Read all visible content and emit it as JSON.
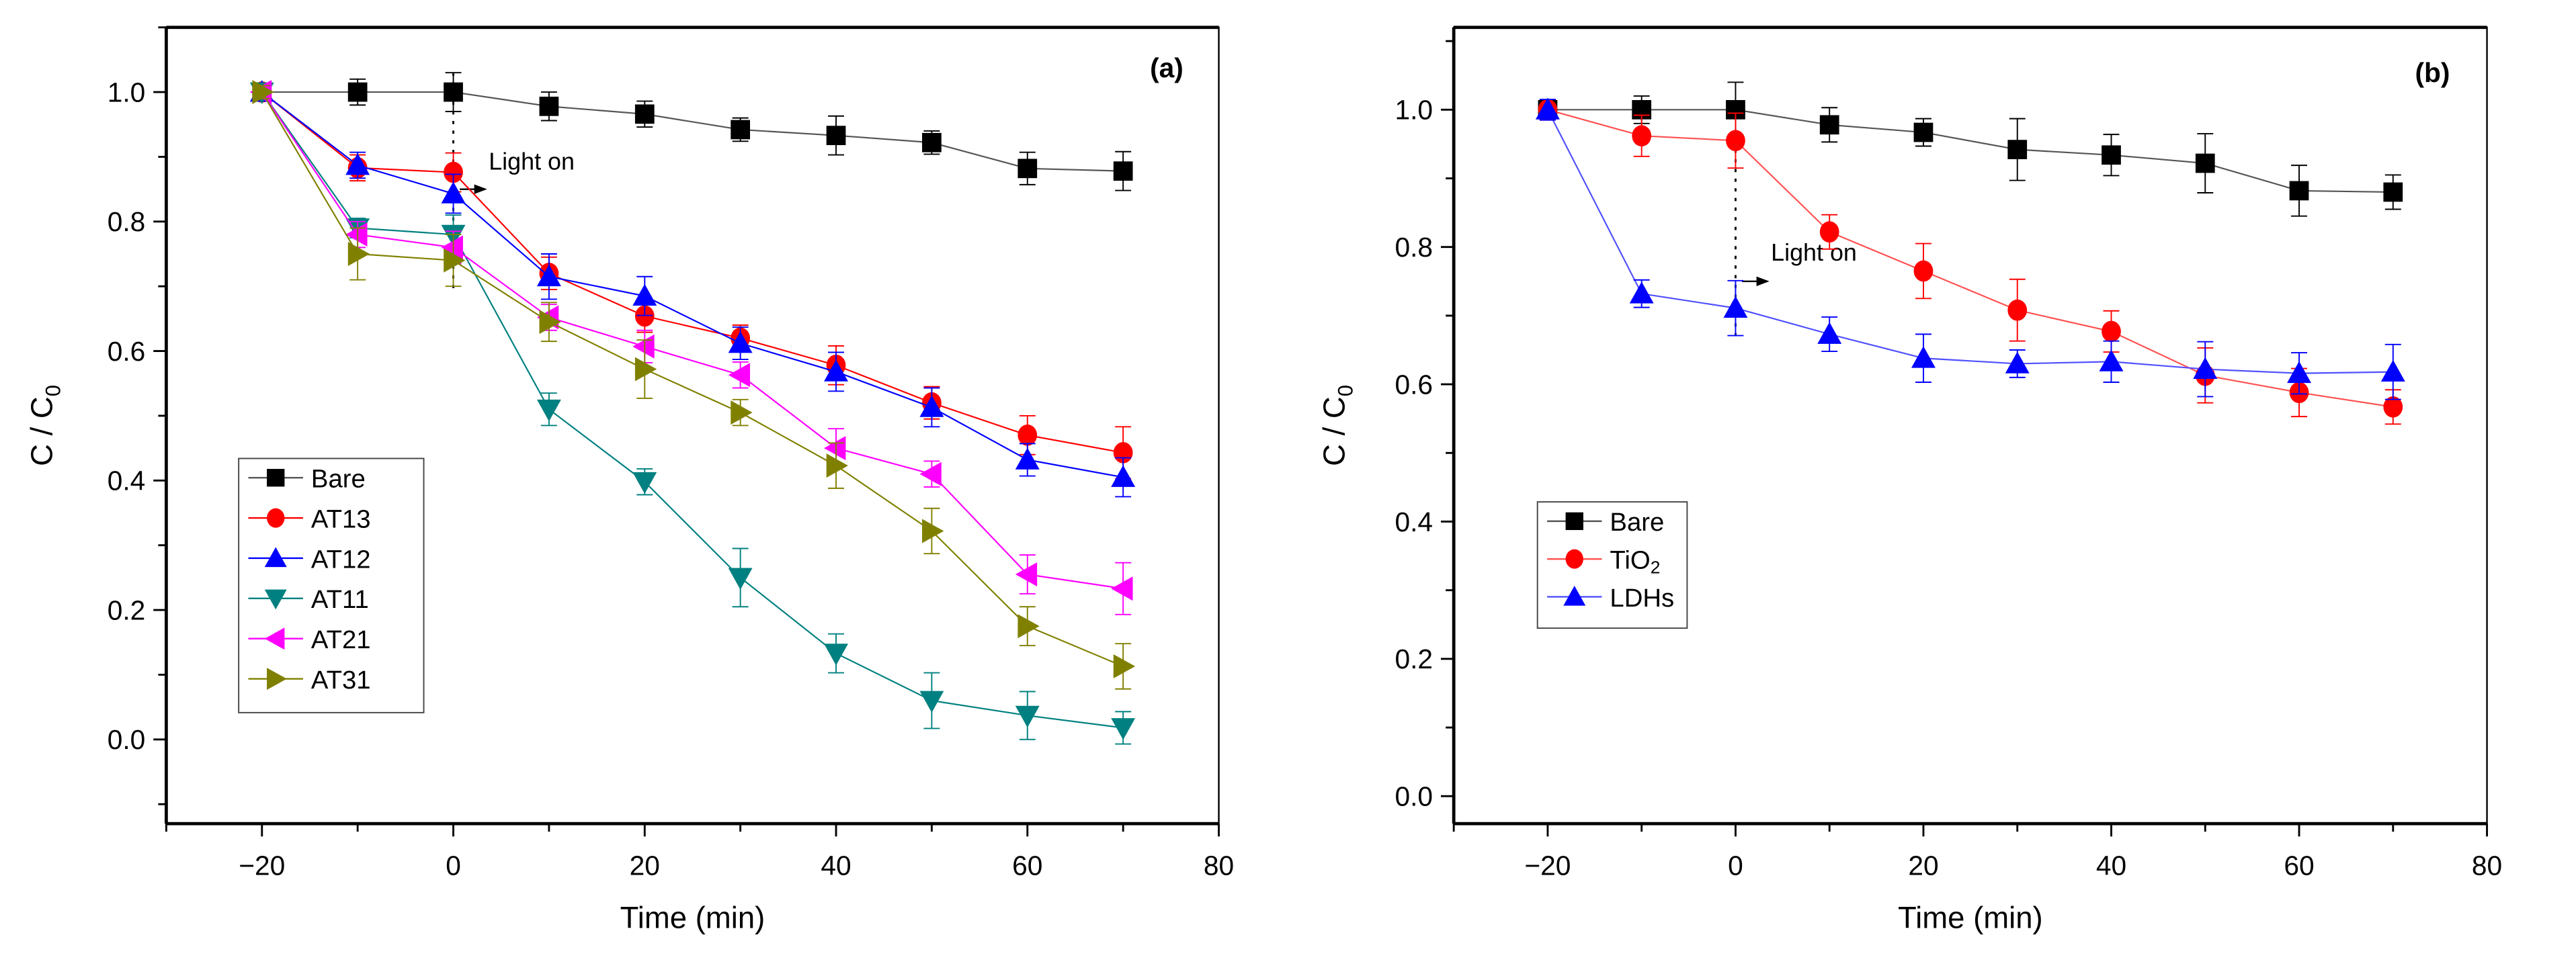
{
  "chart_data": [
    {
      "type": "line",
      "panel_label": "(a)",
      "xlabel": "Time (min)",
      "ylabel_main": "C / C",
      "ylabel_sub": "0",
      "xlim": [
        -30,
        80
      ],
      "ylim": [
        -0.13,
        1.1
      ],
      "xticks": [
        -20,
        0,
        20,
        40,
        60,
        80
      ],
      "xtick_labels": [
        "−20",
        "0",
        "20",
        "40",
        "60",
        "80"
      ],
      "yticks": [
        0.0,
        0.2,
        0.4,
        0.6,
        0.8,
        1.0
      ],
      "ytick_labels": [
        "0.0",
        "0.2",
        "0.4",
        "0.6",
        "0.8",
        "1.0"
      ],
      "grid": false,
      "legend_position": "center-left",
      "annotation": {
        "text": "Light on",
        "x": 0,
        "line_from": 1.03,
        "line_to": 0.69,
        "arrow_y": 0.85,
        "text_y": 0.88
      },
      "x": [
        -20,
        -10,
        0,
        10,
        20,
        30,
        40,
        50,
        60,
        70
      ],
      "series": [
        {
          "name": "Bare",
          "label": "Bare",
          "marker": "square",
          "color": "#000000",
          "line_color": "#555555",
          "values": [
            1.0,
            1.0,
            1.0,
            0.978,
            0.966,
            0.942,
            0.933,
            0.922,
            0.882,
            0.878
          ],
          "errors": [
            0.01,
            0.02,
            0.03,
            0.022,
            0.02,
            0.018,
            0.03,
            0.018,
            0.025,
            0.03
          ]
        },
        {
          "name": "AT13",
          "label": "AT13",
          "marker": "circle",
          "color": "#ff0000",
          "line_color": "#ff0000",
          "values": [
            1.0,
            0.883,
            0.876,
            0.72,
            0.654,
            0.62,
            0.578,
            0.52,
            0.47,
            0.443
          ],
          "errors": [
            0.01,
            0.02,
            0.03,
            0.025,
            0.025,
            0.02,
            0.03,
            0.025,
            0.03,
            0.04
          ]
        },
        {
          "name": "AT12",
          "label": "AT12",
          "marker": "triangle-up",
          "color": "#0000ff",
          "line_color": "#0000ff",
          "values": [
            1.0,
            0.887,
            0.843,
            0.715,
            0.685,
            0.612,
            0.568,
            0.513,
            0.432,
            0.405
          ],
          "errors": [
            0.01,
            0.02,
            0.03,
            0.035,
            0.03,
            0.025,
            0.03,
            0.03,
            0.025,
            0.03
          ]
        },
        {
          "name": "AT11",
          "label": "AT11",
          "marker": "triangle-down",
          "color": "#008080",
          "line_color": "#008080",
          "values": [
            1.0,
            0.79,
            0.78,
            0.51,
            0.398,
            0.25,
            0.133,
            0.06,
            0.037,
            0.018
          ],
          "errors": [
            0.01,
            0.015,
            0.03,
            0.025,
            0.02,
            0.045,
            0.03,
            0.043,
            0.037,
            0.025
          ]
        },
        {
          "name": "AT21",
          "label": "AT21",
          "marker": "triangle-left",
          "color": "#ff00ff",
          "line_color": "#ff00ff",
          "values": [
            1.0,
            0.78,
            0.76,
            0.652,
            0.607,
            0.563,
            0.45,
            0.41,
            0.255,
            0.233
          ],
          "errors": [
            0.01,
            0.02,
            0.025,
            0.02,
            0.025,
            0.02,
            0.03,
            0.02,
            0.03,
            0.04
          ]
        },
        {
          "name": "AT31",
          "label": "AT31",
          "marker": "triangle-right",
          "color": "#808000",
          "line_color": "#808000",
          "values": [
            1.0,
            0.75,
            0.74,
            0.645,
            0.572,
            0.505,
            0.423,
            0.322,
            0.175,
            0.113
          ],
          "errors": [
            0.01,
            0.04,
            0.04,
            0.03,
            0.045,
            0.02,
            0.035,
            0.035,
            0.03,
            0.035
          ]
        }
      ]
    },
    {
      "type": "line",
      "panel_label": "(b)",
      "xlabel": "Time (min)",
      "ylabel_main": "C / C",
      "ylabel_sub": "0",
      "xlim": [
        -30,
        80
      ],
      "ylim": [
        -0.04,
        1.12
      ],
      "xticks": [
        -20,
        0,
        20,
        40,
        60,
        80
      ],
      "xtick_labels": [
        "−20",
        "0",
        "20",
        "40",
        "60",
        "80"
      ],
      "yticks": [
        0.0,
        0.2,
        0.4,
        0.6,
        0.8,
        1.0
      ],
      "ytick_labels": [
        "0.0",
        "0.2",
        "0.4",
        "0.6",
        "0.8",
        "1.0"
      ],
      "grid": false,
      "legend_position": "center-left",
      "annotation": {
        "text": "Light on",
        "x": 0,
        "line_from": 0.97,
        "line_to": 0.67,
        "arrow_y": 0.75,
        "text_y": 0.78
      },
      "x": [
        -20,
        -10,
        0,
        10,
        20,
        30,
        40,
        50,
        60,
        70
      ],
      "series": [
        {
          "name": "Bare",
          "label": "Bare",
          "label_sub": "",
          "marker": "square",
          "color": "#000000",
          "line_color": "#555555",
          "values": [
            1.0,
            1.0,
            1.0,
            0.978,
            0.967,
            0.942,
            0.934,
            0.922,
            0.882,
            0.88
          ],
          "errors": [
            0.01,
            0.02,
            0.04,
            0.025,
            0.02,
            0.045,
            0.03,
            0.043,
            0.037,
            0.025
          ]
        },
        {
          "name": "TiO2",
          "label": "TiO",
          "label_sub": "2",
          "marker": "circle",
          "color": "#ff0000",
          "line_color": "#ff5050",
          "values": [
            1.0,
            0.962,
            0.955,
            0.822,
            0.765,
            0.708,
            0.677,
            0.613,
            0.588,
            0.567
          ],
          "errors": [
            0.015,
            0.03,
            0.04,
            0.025,
            0.04,
            0.045,
            0.03,
            0.04,
            0.035,
            0.025
          ]
        },
        {
          "name": "LDHs",
          "label": "LDHs",
          "label_sub": "",
          "marker": "triangle-up",
          "color": "#0000ff",
          "line_color": "#5050ff",
          "values": [
            1.0,
            0.732,
            0.711,
            0.673,
            0.638,
            0.63,
            0.633,
            0.622,
            0.616,
            0.618
          ],
          "errors": [
            0.015,
            0.02,
            0.04,
            0.025,
            0.035,
            0.02,
            0.03,
            0.04,
            0.03,
            0.04
          ]
        }
      ]
    }
  ]
}
